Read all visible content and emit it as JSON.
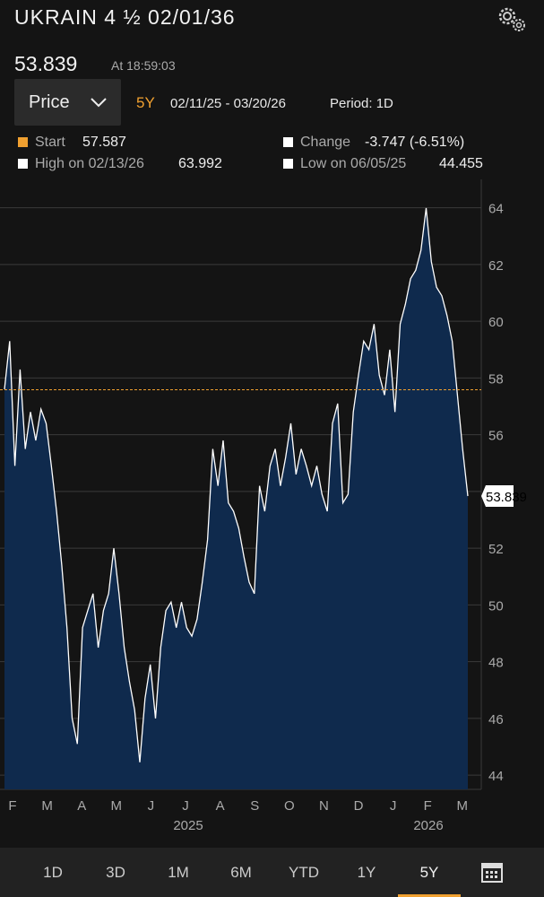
{
  "header": {
    "title": "UKRAIN 4 ½ 02/01/36",
    "price": "53.839",
    "time": "At 18:59:03",
    "field": "Price",
    "range": "5Y",
    "dates": "02/11/25 - 03/20/26",
    "period": "Period: 1D"
  },
  "stats": {
    "start_label": "Start",
    "start_value": "57.587",
    "change_label": "Change",
    "change_value": "-3.747 (-6.51%)",
    "high_label": "High on 02/13/26",
    "high_value": "63.992",
    "low_label": "Low on 06/05/25",
    "low_value": "44.455"
  },
  "chart_data": {
    "type": "area",
    "color": "#ffffff",
    "fill": "#0f2a4d",
    "values": [
      57.6,
      59.3,
      54.9,
      58.3,
      55.5,
      56.8,
      55.8,
      56.9,
      56.4,
      54.9,
      53.3,
      51.4,
      49.2,
      46.0,
      45.1,
      49.2,
      49.8,
      50.4,
      48.5,
      49.8,
      50.4,
      52.0,
      50.4,
      48.5,
      47.3,
      46.3,
      44.455,
      46.7,
      47.9,
      46.0,
      48.5,
      49.8,
      50.1,
      49.2,
      50.1,
      49.2,
      48.9,
      49.5,
      50.8,
      52.3,
      55.5,
      54.2,
      55.8,
      53.6,
      53.3,
      52.7,
      51.7,
      50.8,
      50.4,
      54.2,
      53.3,
      54.9,
      55.5,
      54.2,
      55.2,
      56.4,
      54.6,
      55.5,
      54.9,
      54.2,
      54.9,
      53.9,
      53.3,
      56.4,
      57.1,
      53.6,
      53.9,
      56.8,
      58.1,
      59.3,
      59.0,
      59.9,
      58.1,
      57.4,
      59.0,
      56.8,
      59.9,
      60.6,
      61.5,
      61.8,
      62.5,
      63.992,
      62.1,
      61.2,
      60.9,
      60.2,
      59.3,
      57.4,
      55.5,
      53.839
    ],
    "reference_line": 57.587,
    "reference_color": "#f0a030",
    "ylim": [
      43.5,
      65
    ],
    "yticks": [
      44,
      46,
      48,
      50,
      52,
      54,
      56,
      58,
      60,
      62,
      64
    ],
    "grid": true,
    "x_labels": [
      "F",
      "M",
      "A",
      "M",
      "J",
      "J",
      "A",
      "S",
      "O",
      "N",
      "D",
      "J",
      "F",
      "M"
    ],
    "years": [
      "2025",
      "2026"
    ]
  },
  "tabs": [
    "1D",
    "3D",
    "1M",
    "6M",
    "YTD",
    "1Y",
    "5Y"
  ],
  "active_tab": 6
}
